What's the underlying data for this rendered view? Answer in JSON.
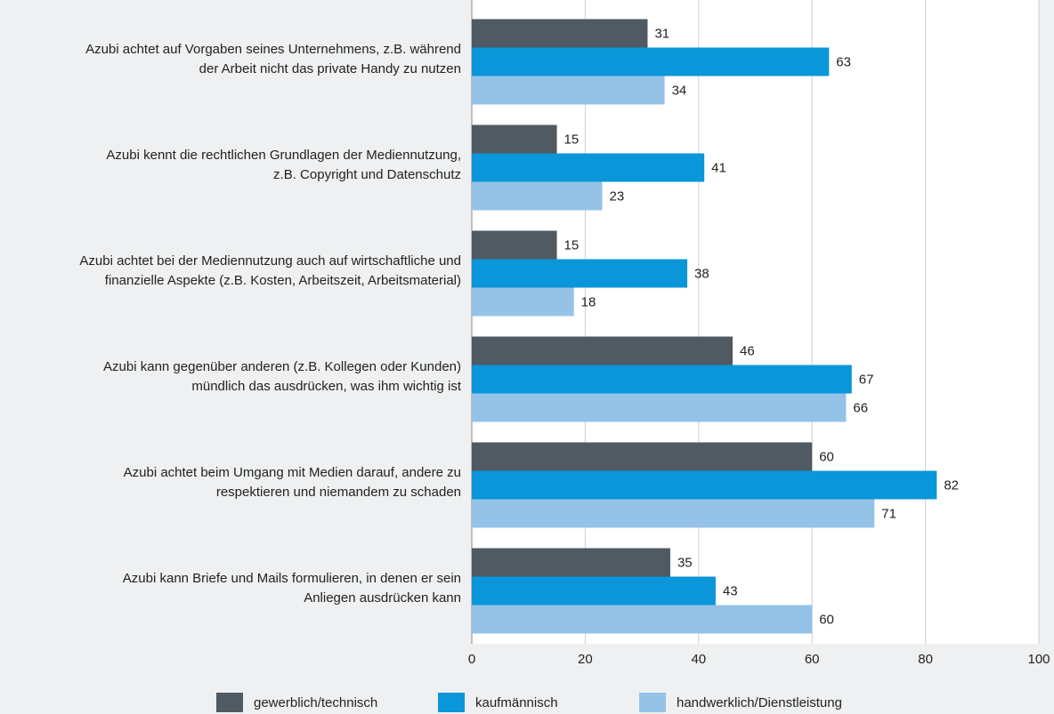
{
  "chart_data": {
    "type": "bar",
    "orientation": "horizontal",
    "categories": [
      "Azubi achtet auf Vorgaben seines Unternehmens, z.B. während\nder Arbeit nicht das private Handy zu nutzen",
      "Azubi kennt die rechtlichen Grundlagen der Mediennutzung,\nz.B. Copyright und Datenschutz",
      "Azubi achtet bei der Mediennutzung auch auf wirtschaftliche und\nfinanzielle Aspekte (z.B. Kosten, Arbeitszeit, Arbeitsmaterial)",
      "Azubi kann gegenüber anderen (z.B. Kollegen oder Kunden)\nmündlich das ausdrücken, was ihm wichtig ist",
      "Azubi achtet beim Umgang mit Medien darauf, andere zu\nrespektieren und niemandem zu schaden",
      "Azubi kann Briefe und Mails formulieren, in denen er sein\nAnliegen ausdrücken kann"
    ],
    "series": [
      {
        "name": "gewerblich/technisch",
        "color": "#4f5a63",
        "values": [
          31,
          15,
          15,
          46,
          60,
          35
        ]
      },
      {
        "name": "kaufmännisch",
        "color": "#0a96d8",
        "values": [
          63,
          41,
          38,
          67,
          82,
          43
        ]
      },
      {
        "name": "handwerklich/Dienstleistung",
        "color": "#95c3e8",
        "values": [
          34,
          23,
          18,
          66,
          71,
          60
        ]
      }
    ],
    "xlim": [
      0,
      100
    ],
    "xticks": [
      0,
      20,
      40,
      60,
      80,
      100
    ],
    "grid": true
  }
}
